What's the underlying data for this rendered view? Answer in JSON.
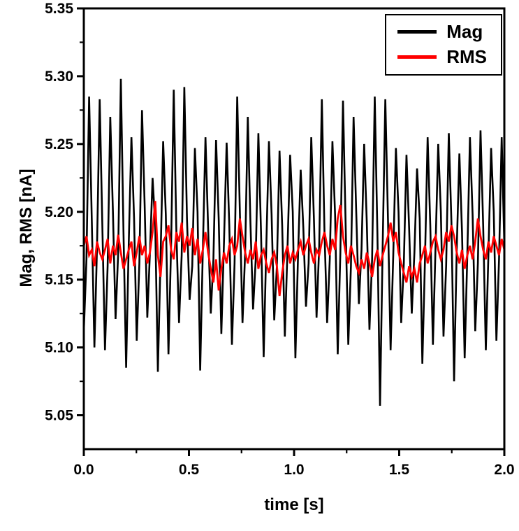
{
  "page": {
    "background": "#ffffff"
  },
  "chart_data": {
    "type": "line",
    "title": "",
    "xlabel": "time [s]",
    "ylabel": "Mag, RMS [nA]",
    "x_range": [
      0,
      2
    ],
    "y_range": [
      5.025,
      5.35
    ],
    "x_ticks": [
      0,
      0.5,
      1,
      1.5,
      2
    ],
    "x_tick_labels": [
      "0.0",
      "0.5",
      "1.0",
      "1.5",
      "2.0"
    ],
    "y_ticks": [
      5.05,
      5.1,
      5.15,
      5.2,
      5.25,
      5.3,
      5.35
    ],
    "y_tick_labels": [
      "5.05",
      "5.10",
      "5.15",
      "5.20",
      "5.25",
      "5.30",
      "5.35"
    ],
    "minor_ticks": "midpoints",
    "grid": false,
    "legend_position": "top-right",
    "frame_color": "#000000",
    "series": [
      {
        "name": "Mag",
        "color": "#000000",
        "line_width": 2.6,
        "values": [
          5.112,
          5.165,
          5.285,
          5.195,
          5.1,
          5.175,
          5.283,
          5.19,
          5.098,
          5.16,
          5.27,
          5.2,
          5.121,
          5.17,
          5.298,
          5.185,
          5.085,
          5.178,
          5.255,
          5.195,
          5.105,
          5.162,
          5.275,
          5.205,
          5.122,
          5.17,
          5.225,
          5.19,
          5.082,
          5.165,
          5.252,
          5.198,
          5.095,
          5.175,
          5.29,
          5.185,
          5.118,
          5.168,
          5.292,
          5.195,
          5.135,
          5.16,
          5.247,
          5.2,
          5.083,
          5.172,
          5.255,
          5.188,
          5.125,
          5.165,
          5.253,
          5.195,
          5.11,
          5.178,
          5.251,
          5.19,
          5.102,
          5.162,
          5.285,
          5.2,
          5.118,
          5.17,
          5.27,
          5.192,
          5.128,
          5.165,
          5.258,
          5.185,
          5.093,
          5.175,
          5.252,
          5.198,
          5.12,
          5.16,
          5.245,
          5.19,
          5.108,
          5.172,
          5.242,
          5.2,
          5.092,
          5.168,
          5.231,
          5.188,
          5.13,
          5.162,
          5.255,
          5.195,
          5.122,
          5.175,
          5.283,
          5.185,
          5.118,
          5.165,
          5.252,
          5.198,
          5.095,
          5.17,
          5.282,
          5.19,
          5.102,
          5.16,
          5.27,
          5.2,
          5.132,
          5.172,
          5.25,
          5.192,
          5.113,
          5.165,
          5.285,
          5.185,
          5.057,
          5.175,
          5.283,
          5.195,
          5.098,
          5.168,
          5.247,
          5.2,
          5.118,
          5.162,
          5.242,
          5.188,
          5.125,
          5.17,
          5.232,
          5.195,
          5.088,
          5.165,
          5.255,
          5.19,
          5.102,
          5.175,
          5.25,
          5.2,
          5.108,
          5.16,
          5.258,
          5.192,
          5.075,
          5.172,
          5.243,
          5.185,
          5.092,
          5.168,
          5.255,
          5.198,
          5.112,
          5.162,
          5.26,
          5.19,
          5.098,
          5.17,
          5.247,
          5.2,
          5.105,
          5.165,
          5.255,
          5.175
        ]
      },
      {
        "name": "RMS",
        "color": "#ff0000",
        "line_width": 2.8,
        "values": [
          5.175,
          5.182,
          5.168,
          5.172,
          5.16,
          5.178,
          5.17,
          5.165,
          5.172,
          5.18,
          5.162,
          5.175,
          5.168,
          5.183,
          5.17,
          5.158,
          5.165,
          5.172,
          5.178,
          5.16,
          5.17,
          5.182,
          5.168,
          5.175,
          5.162,
          5.17,
          5.185,
          5.208,
          5.168,
          5.152,
          5.178,
          5.182,
          5.19,
          5.172,
          5.165,
          5.185,
          5.178,
          5.192,
          5.17,
          5.182,
          5.175,
          5.188,
          5.168,
          5.18,
          5.162,
          5.172,
          5.185,
          5.17,
          5.158,
          5.148,
          5.165,
          5.142,
          5.158,
          5.17,
          5.162,
          5.175,
          5.18,
          5.168,
          5.175,
          5.195,
          5.182,
          5.17,
          5.162,
          5.172,
          5.165,
          5.178,
          5.158,
          5.168,
          5.172,
          5.162,
          5.155,
          5.165,
          5.17,
          5.16,
          5.138,
          5.155,
          5.168,
          5.175,
          5.162,
          5.17,
          5.165,
          5.172,
          5.178,
          5.168,
          5.175,
          5.18,
          5.17,
          5.162,
          5.172,
          5.168,
          5.178,
          5.185,
          5.175,
          5.168,
          5.18,
          5.172,
          5.195,
          5.205,
          5.182,
          5.17,
          5.162,
          5.175,
          5.168,
          5.16,
          5.155,
          5.165,
          5.158,
          5.17,
          5.162,
          5.152,
          5.165,
          5.172,
          5.16,
          5.168,
          5.175,
          5.182,
          5.192,
          5.178,
          5.185,
          5.17,
          5.162,
          5.155,
          5.148,
          5.16,
          5.152,
          5.158,
          5.148,
          5.162,
          5.168,
          5.175,
          5.162,
          5.17,
          5.178,
          5.182,
          5.172,
          5.165,
          5.172,
          5.185,
          5.178,
          5.19,
          5.182,
          5.17,
          5.162,
          5.172,
          5.158,
          5.168,
          5.175,
          5.165,
          5.178,
          5.195,
          5.182,
          5.172,
          5.165,
          5.178,
          5.17,
          5.182,
          5.175,
          5.168,
          5.18,
          5.172
        ]
      }
    ]
  }
}
